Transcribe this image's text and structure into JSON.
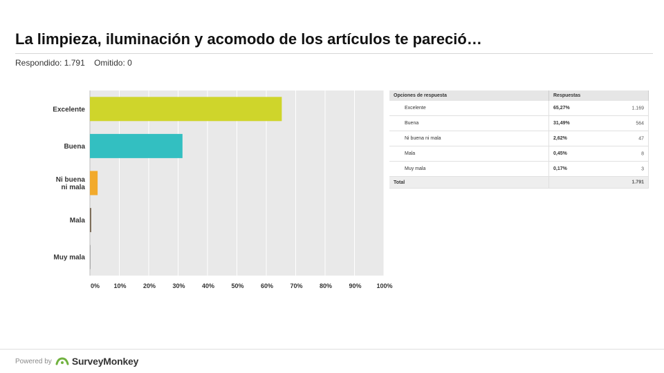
{
  "question": {
    "title": "La limpieza, iluminación y acomodo de los artículos te pareció…",
    "answered": "Respondido: 1.791",
    "skipped": "Omitido: 0"
  },
  "chart_data": {
    "type": "bar",
    "orientation": "horizontal",
    "categories": [
      "Excelente",
      "Buena",
      "Ni buena ni mala",
      "Mala",
      "Muy mala"
    ],
    "values": [
      65.27,
      31.49,
      2.62,
      0.45,
      0.17
    ],
    "colors": [
      "#cfd52b",
      "#33bfc1",
      "#f2aa2c",
      "#7a6a55",
      "#999999"
    ],
    "xticks": [
      "0%",
      "10%",
      "20%",
      "30%",
      "40%",
      "50%",
      "60%",
      "70%",
      "80%",
      "90%",
      "100%"
    ],
    "xlim": [
      0,
      100
    ],
    "grid": true
  },
  "table": {
    "headers": [
      "Opciones de respuesta",
      "Respuestas"
    ],
    "rows": [
      {
        "option": "Excelente",
        "percent": "65,27%",
        "count": "1.169"
      },
      {
        "option": "Buena",
        "percent": "31,49%",
        "count": "564"
      },
      {
        "option": "Ni buena ni mala",
        "percent": "2,62%",
        "count": "47"
      },
      {
        "option": "Mala",
        "percent": "0,45%",
        "count": "8"
      },
      {
        "option": "Muy mala",
        "percent": "0,17%",
        "count": "3"
      }
    ],
    "total_label": "Total",
    "total_value": "1.791"
  },
  "footer": {
    "powered_by": "Powered by",
    "brand": "SurveyMonkey",
    "logo_icon": "surveymonkey-logo-icon",
    "logo_color": "#71b23f"
  }
}
